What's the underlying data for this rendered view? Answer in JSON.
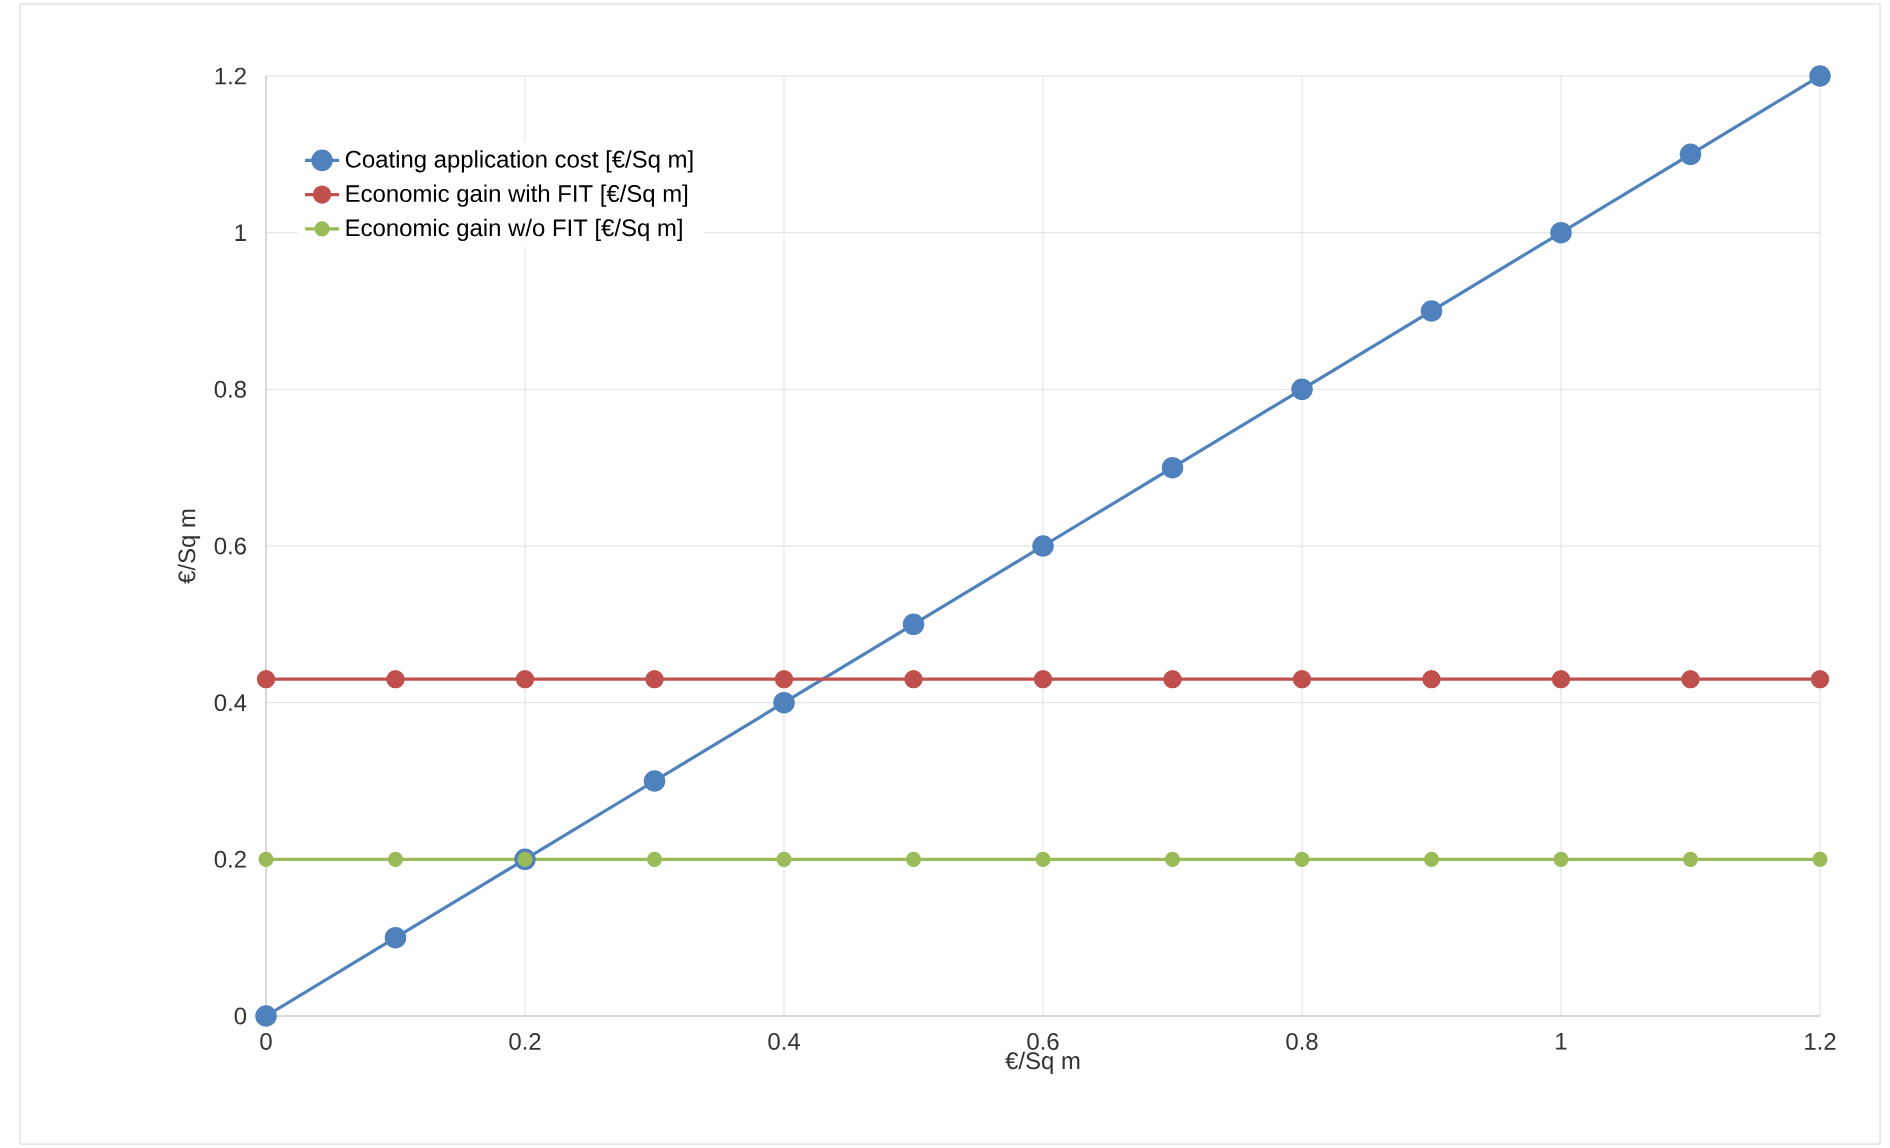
{
  "chart_data": {
    "type": "line",
    "xlabel": "€/Sq m",
    "ylabel": "€/Sq m",
    "x": [
      0,
      0.1,
      0.2,
      0.3,
      0.4,
      0.5,
      0.6,
      0.7,
      0.8,
      0.9,
      1,
      1.1,
      1.2
    ],
    "series": [
      {
        "name": "Coating application cost [€/Sq m]",
        "color": "#4f81bd",
        "values": [
          0,
          0.1,
          0.2,
          0.3,
          0.4,
          0.5,
          0.6,
          0.7,
          0.8,
          0.9,
          1,
          1.1,
          1.2
        ]
      },
      {
        "name": "Economic gain with FIT [€/Sq m]",
        "color": "#c0504d",
        "values": [
          0.43,
          0.43,
          0.43,
          0.43,
          0.43,
          0.43,
          0.43,
          0.43,
          0.43,
          0.43,
          0.43,
          0.43,
          0.43
        ]
      },
      {
        "name": "Economic gain w/o FIT [€/Sq m]",
        "color": "#9bbb59",
        "values": [
          0.2,
          0.2,
          0.2,
          0.2,
          0.2,
          0.2,
          0.2,
          0.2,
          0.2,
          0.2,
          0.2,
          0.2,
          0.2
        ]
      }
    ],
    "xlim": [
      0,
      1.2
    ],
    "ylim": [
      0,
      1.2
    ],
    "xticks": [
      0,
      0.2,
      0.4,
      0.6,
      0.8,
      1,
      1.2
    ],
    "yticks": [
      0,
      0.2,
      0.4,
      0.6,
      0.8,
      1,
      1.2
    ],
    "grid": true,
    "legend": "top left",
    "marker": "circle",
    "line_style": "solid"
  }
}
